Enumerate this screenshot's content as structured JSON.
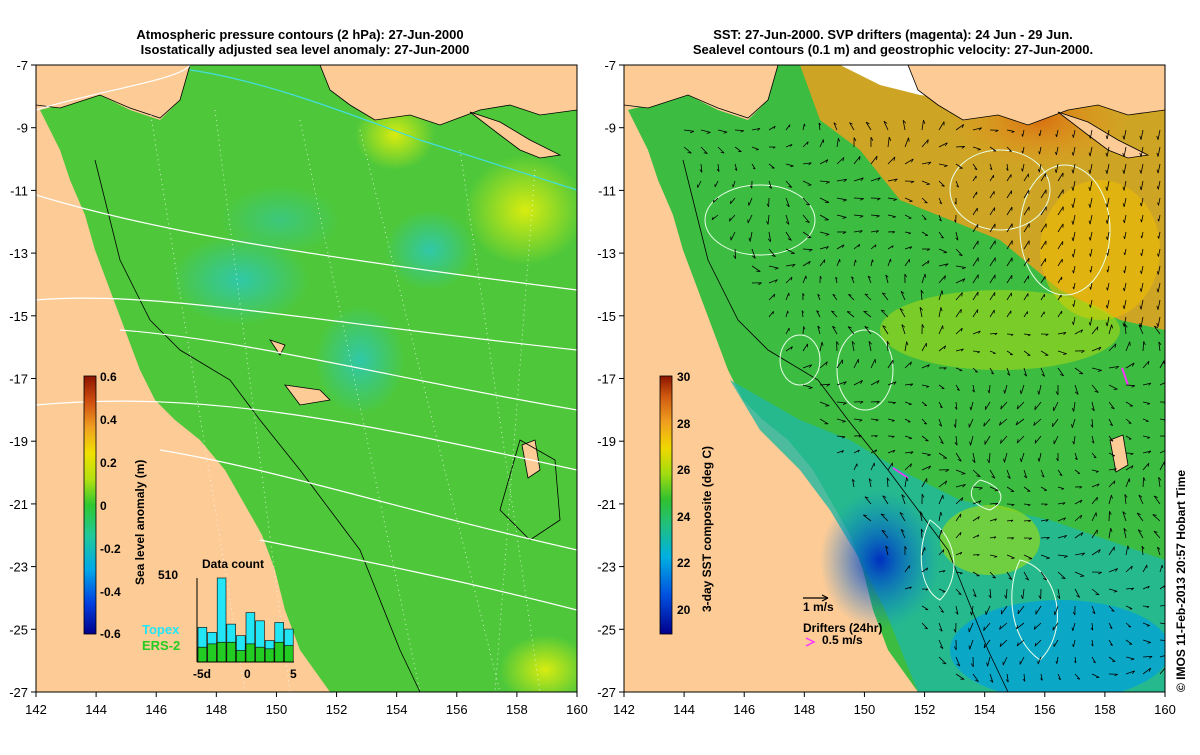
{
  "left_panel": {
    "title_line1": "Atmospheric pressure contours (2 hPa): 27-Jun-2000",
    "title_line2": "Isostatically adjusted sea level anomaly: 27-Jun-2000",
    "x_ticks": [
      "142",
      "144",
      "146",
      "148",
      "150",
      "152",
      "154",
      "156",
      "158",
      "160"
    ],
    "y_ticks": [
      "-7",
      "-9",
      "-11",
      "-13",
      "-15",
      "-17",
      "-19",
      "-21",
      "-23",
      "-25",
      "-27"
    ],
    "colorbar": {
      "label": "Sea level anomaly (m)",
      "ticks": [
        "0.6",
        "0.4",
        "0.2",
        "0",
        "-0.2",
        "-0.4",
        "-0.6"
      ]
    },
    "data_count": {
      "title": "Data count",
      "max_label": "510",
      "x_ticks": [
        "-5d",
        "0",
        "5"
      ],
      "topex_label": "Topex",
      "ers2_label": "ERS-2",
      "topex_color": "#22e5f5",
      "ers2_color": "#22cc22",
      "topex_counts": [
        210,
        180,
        510,
        230,
        160,
        300,
        250,
        130,
        240,
        200
      ],
      "ers2_counts": [
        90,
        110,
        120,
        120,
        70,
        110,
        90,
        80,
        120,
        100
      ]
    }
  },
  "right_panel": {
    "title_line1": "SST: 27-Jun-2000. SVP drifters (magenta): 24 Jun - 29 Jun.",
    "title_line2": "Sealevel contours (0.1 m) and geostrophic velocity: 27-Jun-2000.",
    "x_ticks": [
      "142",
      "144",
      "146",
      "148",
      "150",
      "152",
      "154",
      "156",
      "158",
      "160"
    ],
    "y_ticks": [
      "-7",
      "-9",
      "-11",
      "-13",
      "-15",
      "-17",
      "-19",
      "-21",
      "-23",
      "-25",
      "-27"
    ],
    "colorbar": {
      "label": "3-day SST composite (deg C)",
      "ticks": [
        "30",
        "28",
        "26",
        "24",
        "22",
        "20"
      ]
    },
    "legend": {
      "velocity_label": "1 m/s",
      "drifters_label": "Drifters (24hr)",
      "drifter_speed_label": "0.5 m/s",
      "drifter_color": "#ff33ff"
    }
  },
  "credit": "© IMOS 11-Feb-2013 20:57 Hobart Time",
  "colors": {
    "land": "#fccb96",
    "sea_level_mid": "#4cc838"
  }
}
